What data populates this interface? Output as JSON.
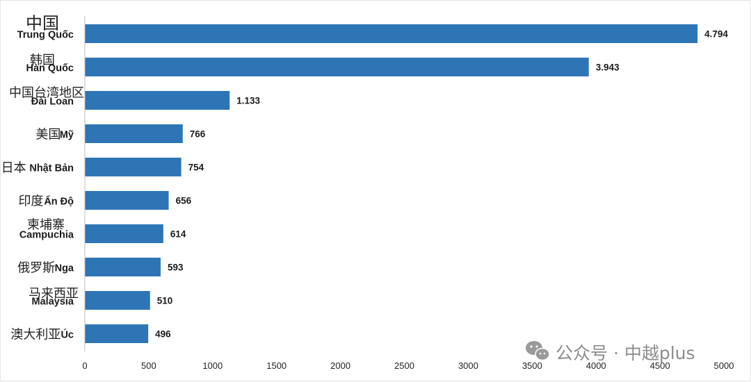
{
  "chart_data": {
    "type": "bar",
    "orientation": "horizontal",
    "categories": [
      {
        "zh": "中国",
        "vi": "Trung Quốc"
      },
      {
        "zh": "韩国",
        "vi": "Hàn Quốc"
      },
      {
        "zh": "中国台湾地区",
        "vi": "Đài Loan"
      },
      {
        "zh": "美国",
        "vi": "Mỹ"
      },
      {
        "zh": "日本",
        "vi": "Nhật Bản"
      },
      {
        "zh": "印度",
        "vi": "Ấn Độ"
      },
      {
        "zh": "柬埔寨",
        "vi": "Campuchia"
      },
      {
        "zh": "俄罗斯",
        "vi": "Nga"
      },
      {
        "zh": "马来西亚",
        "vi": "Malaysia"
      },
      {
        "zh": "澳大利亚",
        "vi": "Úc"
      }
    ],
    "values": [
      4794,
      3943,
      1133,
      766,
      754,
      656,
      614,
      593,
      510,
      496
    ],
    "value_labels": [
      "4.794",
      "3.943",
      "1.133",
      "766",
      "754",
      "656",
      "614",
      "593",
      "510",
      "496"
    ],
    "xlim": [
      0,
      5000
    ],
    "xticks": [
      0,
      500,
      1000,
      1500,
      2000,
      2500,
      3000,
      3500,
      4000,
      4500,
      5000
    ],
    "bar_color": "#2e75b6",
    "grid": false,
    "legend": "none"
  },
  "watermark": {
    "icon": "wechat-icon",
    "text": "公众号 · 中越plus"
  }
}
